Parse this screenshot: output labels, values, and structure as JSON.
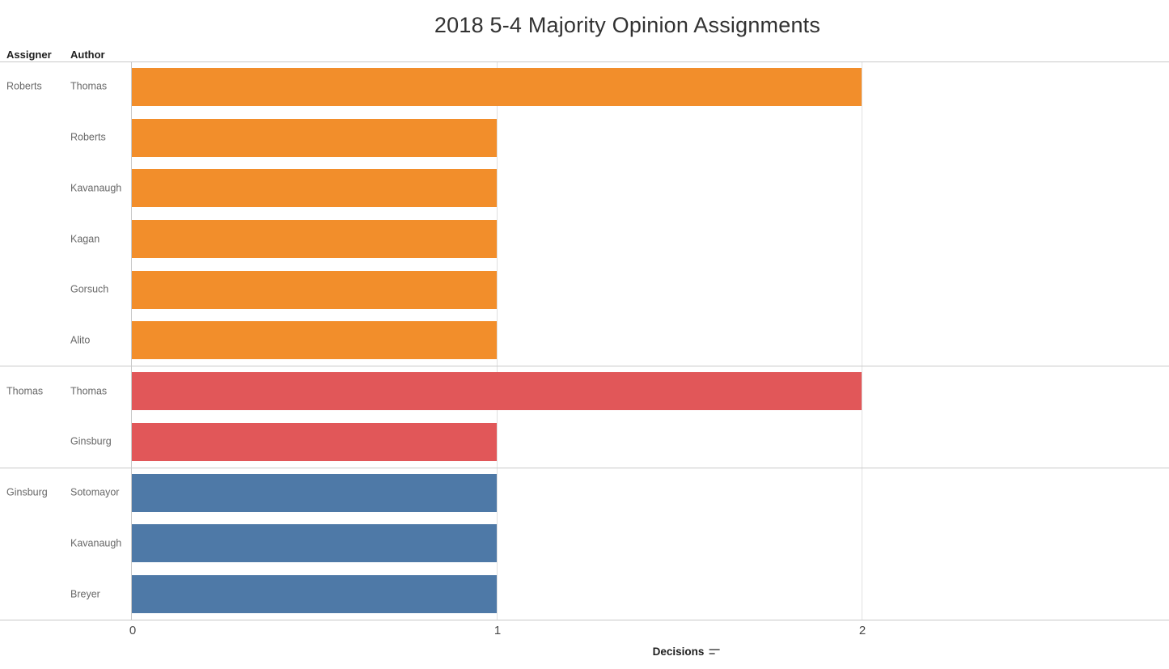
{
  "title": "2018 5-4 Majority Opinion Assignments",
  "columns": {
    "assigner": "Assigner",
    "author": "Author"
  },
  "axis": {
    "title": "Decisions",
    "tick_labels": [
      "0",
      "1",
      "2"
    ],
    "sort_indicator": "descending"
  },
  "colors": {
    "roberts_group": "#F28E2B",
    "thomas_group": "#E15759",
    "ginsburg_group": "#4E79A7"
  },
  "chart_data": {
    "type": "bar",
    "orientation": "horizontal",
    "title": "2018 5-4 Majority Opinion Assignments",
    "xlabel": "Decisions",
    "xticks": [
      0,
      1,
      2
    ],
    "xlim": [
      0,
      2.84
    ],
    "grid": "vertical",
    "legend_position": "none",
    "row_header_columns": [
      "Assigner",
      "Author"
    ],
    "groups": [
      {
        "assigner": "Roberts",
        "color": "#F28E2B",
        "bars": [
          {
            "author": "Thomas",
            "value": 2
          },
          {
            "author": "Roberts",
            "value": 1
          },
          {
            "author": "Kavanaugh",
            "value": 1
          },
          {
            "author": "Kagan",
            "value": 1
          },
          {
            "author": "Gorsuch",
            "value": 1
          },
          {
            "author": "Alito",
            "value": 1
          }
        ]
      },
      {
        "assigner": "Thomas",
        "color": "#E15759",
        "bars": [
          {
            "author": "Thomas",
            "value": 2
          },
          {
            "author": "Ginsburg",
            "value": 1
          }
        ]
      },
      {
        "assigner": "Ginsburg",
        "color": "#4E79A7",
        "bars": [
          {
            "author": "Sotomayor",
            "value": 1
          },
          {
            "author": "Kavanaugh",
            "value": 1
          },
          {
            "author": "Breyer",
            "value": 1
          }
        ]
      }
    ]
  }
}
